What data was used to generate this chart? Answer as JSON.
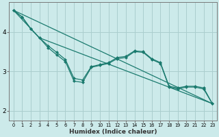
{
  "xlabel": "Humidex (Indice chaleur)",
  "ylabel": "",
  "bg_color": "#cceaea",
  "line_color": "#1a7a6e",
  "grid_color": "#aacece",
  "axis_color": "#777777",
  "text_color": "#333333",
  "xlim": [
    -0.5,
    23.5
  ],
  "ylim": [
    1.75,
    4.75
  ],
  "yticks": [
    2,
    3,
    4
  ],
  "xticks": [
    0,
    1,
    2,
    3,
    4,
    5,
    6,
    7,
    8,
    9,
    10,
    11,
    12,
    13,
    14,
    15,
    16,
    17,
    18,
    19,
    20,
    21,
    22,
    23
  ],
  "series": [
    {
      "x": [
        0,
        23
      ],
      "y": [
        4.55,
        2.18
      ]
    },
    {
      "x": [
        0,
        3,
        23
      ],
      "y": [
        4.55,
        3.85,
        2.18
      ]
    },
    {
      "x": [
        0,
        1,
        2,
        3,
        4,
        5,
        6,
        7,
        8,
        9,
        10,
        11,
        12,
        13,
        14,
        15,
        16,
        17,
        18,
        19,
        20,
        21,
        22,
        23
      ],
      "y": [
        4.55,
        4.38,
        4.08,
        3.85,
        3.6,
        3.42,
        3.25,
        2.75,
        2.72,
        3.1,
        3.15,
        3.2,
        3.32,
        3.35,
        3.5,
        3.48,
        3.3,
        3.2,
        2.6,
        2.55,
        2.6,
        2.6,
        2.55,
        2.18
      ]
    },
    {
      "x": [
        0,
        1,
        2,
        3,
        4,
        5,
        6,
        7,
        8,
        9,
        10,
        11,
        12,
        13,
        14,
        15,
        16,
        17,
        18,
        19,
        20,
        21,
        22,
        23
      ],
      "y": [
        4.55,
        4.38,
        4.08,
        3.85,
        3.65,
        3.48,
        3.3,
        2.82,
        2.78,
        3.12,
        3.17,
        3.22,
        3.35,
        3.38,
        3.52,
        3.5,
        3.32,
        3.22,
        2.62,
        2.58,
        2.62,
        2.62,
        2.58,
        2.18
      ]
    }
  ]
}
